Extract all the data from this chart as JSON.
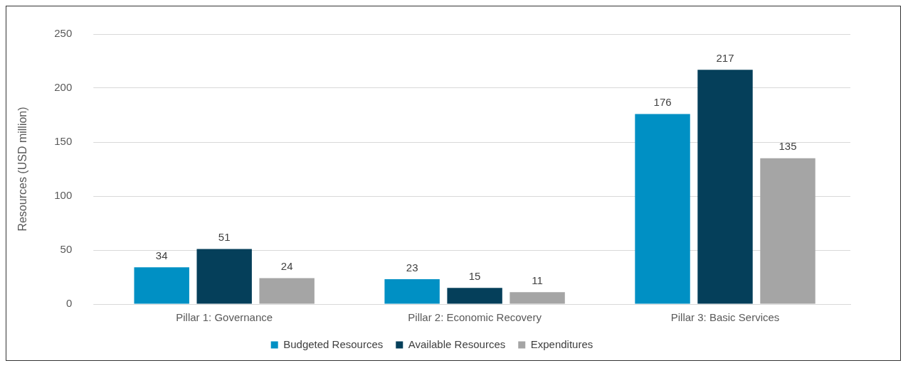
{
  "chart_data": {
    "type": "bar",
    "ylabel": "Resources (USD million)",
    "categories": [
      "Pillar 1: Governance",
      "Pillar 2: Economic Recovery",
      "Pillar 3: Basic Services"
    ],
    "series": [
      {
        "name": "Budgeted Resources",
        "color": "#0090c4",
        "values": [
          34,
          23,
          176
        ]
      },
      {
        "name": "Available Resources",
        "color": "#053f5a",
        "values": [
          51,
          15,
          217
        ]
      },
      {
        "name": "Expenditures",
        "color": "#a5a5a5",
        "values": [
          24,
          11,
          135
        ]
      }
    ],
    "ylim": [
      0,
      250
    ],
    "yticks": [
      0,
      50,
      100,
      150,
      200,
      250
    ],
    "grid": "y",
    "legend": "bottom",
    "data_labels": true
  }
}
